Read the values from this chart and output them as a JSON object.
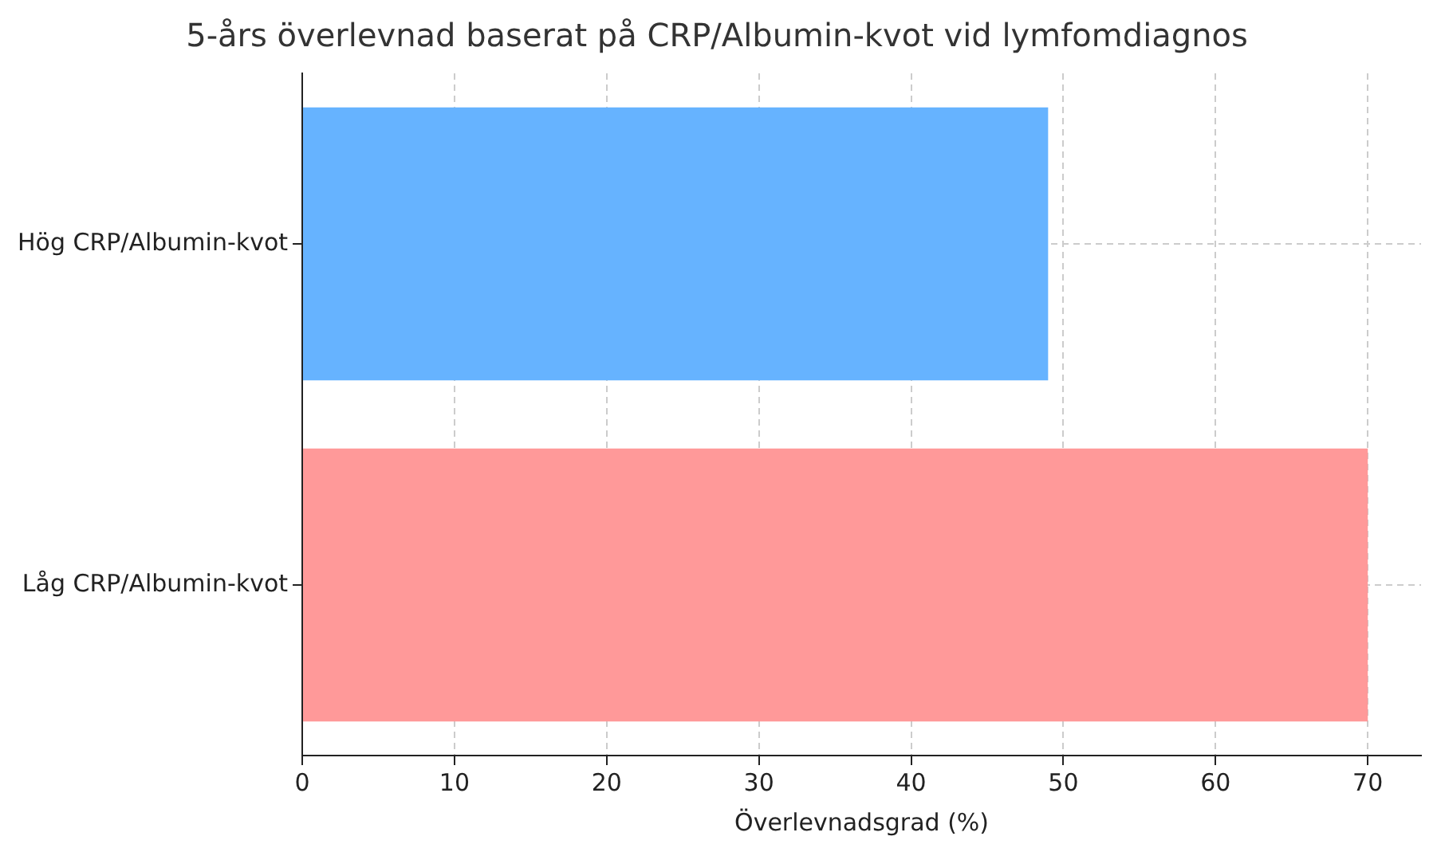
{
  "chart_data": {
    "type": "bar",
    "orientation": "horizontal",
    "title": "5-års överlevnad baserat på CRP/Albumin-kvot vid lymfomdiagnos",
    "xlabel": "Överlevnadsgrad (%)",
    "categories": [
      "Hög CRP/Albumin-kvot",
      "Låg CRP/Albumin-kvot"
    ],
    "values": [
      49,
      70
    ],
    "colors": [
      "#66b3ff",
      "#ff9999"
    ],
    "xlim": [
      0,
      73.5
    ],
    "xticks": [
      0,
      10,
      20,
      30,
      40,
      50,
      60,
      70
    ],
    "grid": true
  }
}
